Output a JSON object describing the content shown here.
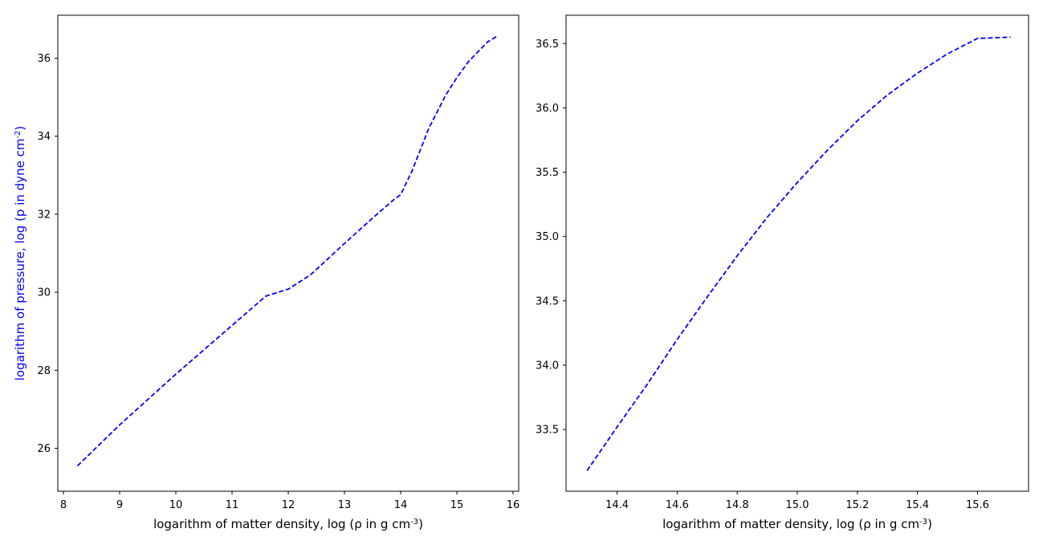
{
  "chart_data": [
    {
      "type": "line",
      "xlabel": "logarithm of matter density, log (ρ in g cm⁻³)",
      "ylabel": "logarithm of pressure, log (p in dyne cm⁻²)",
      "ylabel_color": "#0000ff",
      "xlim": [
        7.9,
        16.1
      ],
      "ylim": [
        24.9,
        37.1
      ],
      "xticks": [
        8,
        9,
        10,
        11,
        12,
        13,
        14,
        15,
        16
      ],
      "yticks": [
        26,
        28,
        30,
        32,
        34,
        36
      ],
      "xtick_labels": [
        "8",
        "9",
        "10",
        "11",
        "12",
        "13",
        "14",
        "15",
        "16"
      ],
      "ytick_labels": [
        "26",
        "28",
        "30",
        "32",
        "34",
        "36"
      ],
      "grid": false,
      "series": [
        {
          "color": "#0000ff",
          "style": "dashed",
          "x": [
            8.25,
            9.0,
            10.0,
            11.0,
            11.6,
            12.0,
            12.4,
            13.0,
            13.5,
            13.9,
            14.0,
            14.2,
            14.5,
            14.8,
            15.0,
            15.2,
            15.4,
            15.55,
            15.7
          ],
          "y": [
            25.55,
            26.6,
            27.9,
            29.15,
            29.9,
            30.08,
            30.45,
            31.25,
            31.9,
            32.4,
            32.5,
            33.1,
            34.2,
            35.05,
            35.5,
            35.9,
            36.2,
            36.42,
            36.55
          ]
        }
      ]
    },
    {
      "type": "line",
      "xlabel": "logarithm of matter density, log (ρ in g cm⁻³)",
      "ylabel": "",
      "xlim": [
        14.23,
        15.77
      ],
      "ylim": [
        33.02,
        36.72
      ],
      "xticks": [
        14.4,
        14.6,
        14.8,
        15.0,
        15.2,
        15.4,
        15.6
      ],
      "yticks": [
        33.5,
        34.0,
        34.5,
        35.0,
        35.5,
        36.0,
        36.5
      ],
      "xtick_labels": [
        "14.4",
        "14.6",
        "14.8",
        "15.0",
        "15.2",
        "15.4",
        "15.6"
      ],
      "ytick_labels": [
        "33.5",
        "34.0",
        "34.5",
        "35.0",
        "35.5",
        "36.0",
        "36.5"
      ],
      "grid": false,
      "series": [
        {
          "color": "#0000ff",
          "style": "dashed",
          "x": [
            14.3,
            14.4,
            14.5,
            14.6,
            14.7,
            14.8,
            14.9,
            15.0,
            15.1,
            15.2,
            15.3,
            15.4,
            15.5,
            15.6,
            15.71
          ],
          "y": [
            33.18,
            33.52,
            33.85,
            34.2,
            34.53,
            34.85,
            35.15,
            35.42,
            35.67,
            35.9,
            36.1,
            36.27,
            36.42,
            36.54,
            36.55
          ]
        }
      ]
    }
  ]
}
